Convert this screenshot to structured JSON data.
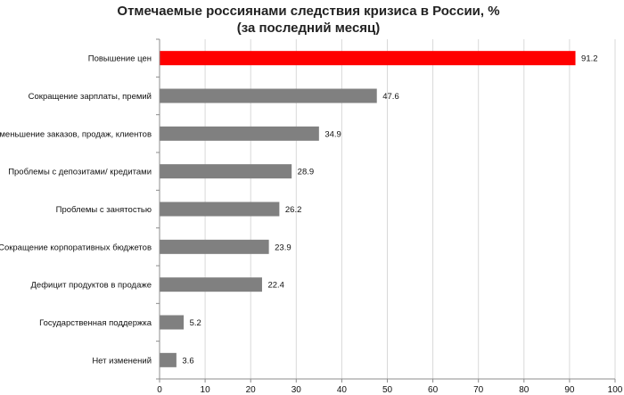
{
  "chart_data": {
    "type": "bar",
    "orientation": "horizontal",
    "title_line1": "Отмечаемые   россиянами следствия кризиса в России, %",
    "title_line2": "(за последний месяц)",
    "categories": [
      "Повышение цен",
      "Сокращение зарплаты, премий",
      "Уменьшение заказов, продаж, клиентов",
      "Проблемы с депозитами/ кредитами",
      "Проблемы с занятостью",
      "Сокращение корпоративных бюджетов",
      "Дефицит продуктов в продаже",
      "Государственная поддержка",
      "Нет изменений"
    ],
    "values": [
      91.2,
      47.6,
      34.9,
      28.9,
      26.2,
      23.9,
      22.4,
      5.2,
      3.6
    ],
    "value_labels": [
      "91.2",
      "47.6",
      "34.9",
      "28.9",
      "26.2",
      "23.9",
      "22.4",
      "5.2",
      "3.6"
    ],
    "xlim": [
      0,
      100
    ],
    "xticks": [
      0,
      10,
      20,
      30,
      40,
      50,
      60,
      70,
      80,
      90,
      100
    ],
    "xtick_labels": [
      "0",
      "10",
      "20",
      "30",
      "40",
      "50",
      "60",
      "70",
      "80",
      "90",
      "100"
    ],
    "grid": true,
    "colors": {
      "highlight": "#ff0000",
      "bar": "#808080",
      "grid": "#d9d9d9",
      "axis": "#8c8c8c"
    },
    "highlight_index": 0
  }
}
